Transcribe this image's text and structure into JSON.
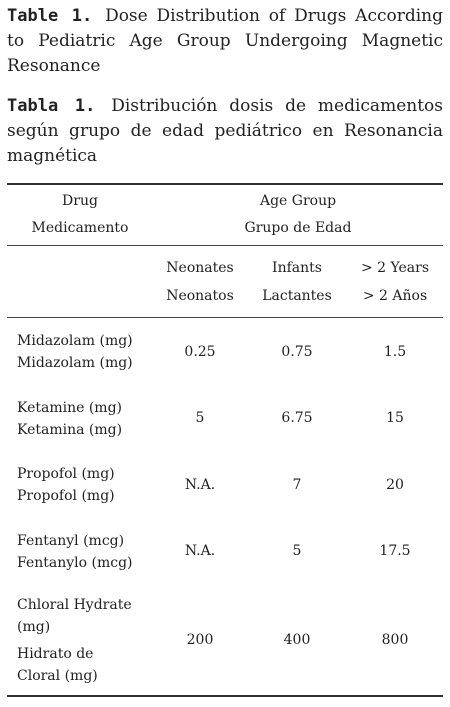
{
  "caption_en": {
    "label": "Table 1.",
    "text": "Dose Distribution of Drugs According to Pediatric Age Group Undergoing Magnetic Resonance"
  },
  "caption_es": {
    "label": "Tabla 1.",
    "text": "Distribución dosis de medicamentos según grupo de edad pediátrico en Resonancia magnética"
  },
  "table": {
    "header": {
      "drug_en": "Drug",
      "drug_es": "Medicamento",
      "group_en": "Age Group",
      "group_es": "Grupo de Edad"
    },
    "columns": [
      {
        "en": "Neonates",
        "es": "Neonatos"
      },
      {
        "en": "Infants",
        "es": "Lactantes"
      },
      {
        "en": "> 2 Years",
        "es": "> 2 Años"
      }
    ],
    "rows": [
      {
        "name_lines": [
          "Midazolam (mg)",
          "Midazolam (mg)"
        ],
        "values": [
          "0.25",
          "0.75",
          "1.5"
        ]
      },
      {
        "name_lines": [
          "Ketamine (mg)",
          "Ketamina (mg)"
        ],
        "values": [
          "5",
          "6.75",
          "15"
        ]
      },
      {
        "name_lines": [
          "Propofol (mg)",
          "Propofol (mg)"
        ],
        "values": [
          "N.A.",
          "7",
          "20"
        ]
      },
      {
        "name_lines": [
          "Fentanyl (mcg)",
          "Fentanylo (mcg)"
        ],
        "values": [
          "N.A.",
          "5",
          "17.5"
        ]
      },
      {
        "name_lines": [
          "Chloral Hydrate",
          "(mg)",
          "Hidrato de",
          "Cloral (mg)"
        ],
        "values": [
          "200",
          "400",
          "800"
        ]
      }
    ]
  }
}
